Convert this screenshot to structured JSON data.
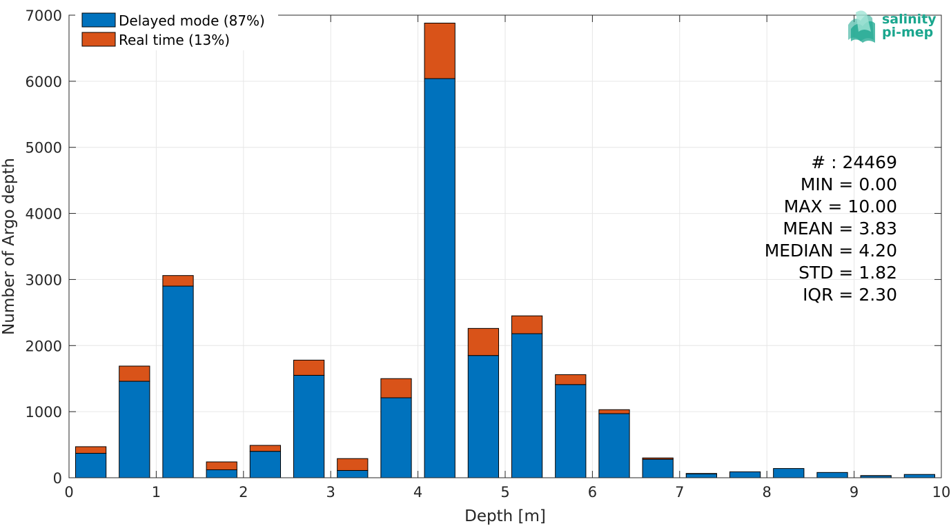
{
  "chart_data": {
    "type": "bar",
    "stacked": true,
    "xlabel": "Depth [m]",
    "ylabel": "Number of Argo depth",
    "xlim": [
      0,
      10
    ],
    "ylim": [
      0,
      7000
    ],
    "xticks": [
      "0",
      "1",
      "2",
      "3",
      "4",
      "5",
      "6",
      "7",
      "8",
      "9",
      "10"
    ],
    "yticks": [
      "0",
      "1000",
      "2000",
      "3000",
      "4000",
      "5000",
      "6000",
      "7000"
    ],
    "grid": true,
    "bin_centers": [
      0.25,
      0.75,
      1.25,
      1.75,
      2.25,
      2.75,
      3.25,
      3.75,
      4.25,
      4.75,
      5.25,
      5.75,
      6.25,
      6.75,
      7.25,
      7.75,
      8.25,
      8.75,
      9.25,
      9.75
    ],
    "bar_width": 0.35,
    "series": [
      {
        "name": "Delayed mode (87%)",
        "color": "#0072bd",
        "values": [
          370,
          1460,
          2900,
          120,
          400,
          1550,
          110,
          1210,
          6040,
          1850,
          2180,
          1410,
          970,
          280,
          60,
          90,
          140,
          80,
          30,
          50
        ]
      },
      {
        "name": "Real time (13%)",
        "color": "#d95319",
        "values": [
          100,
          230,
          160,
          120,
          90,
          230,
          180,
          290,
          840,
          410,
          270,
          150,
          60,
          20,
          5,
          0,
          0,
          0,
          3,
          0
        ]
      }
    ],
    "legend_position": "top-left",
    "stats": [
      "# : 24469",
      "MIN = 0.00",
      "MAX =  10.00",
      "MEAN = 3.83",
      "MEDIAN = 4.20",
      "STD = 1.82",
      "IQR = 2.30"
    ]
  },
  "logo": {
    "line1": "salinity",
    "line2": "pi-mep",
    "color": "#1aa68e"
  }
}
